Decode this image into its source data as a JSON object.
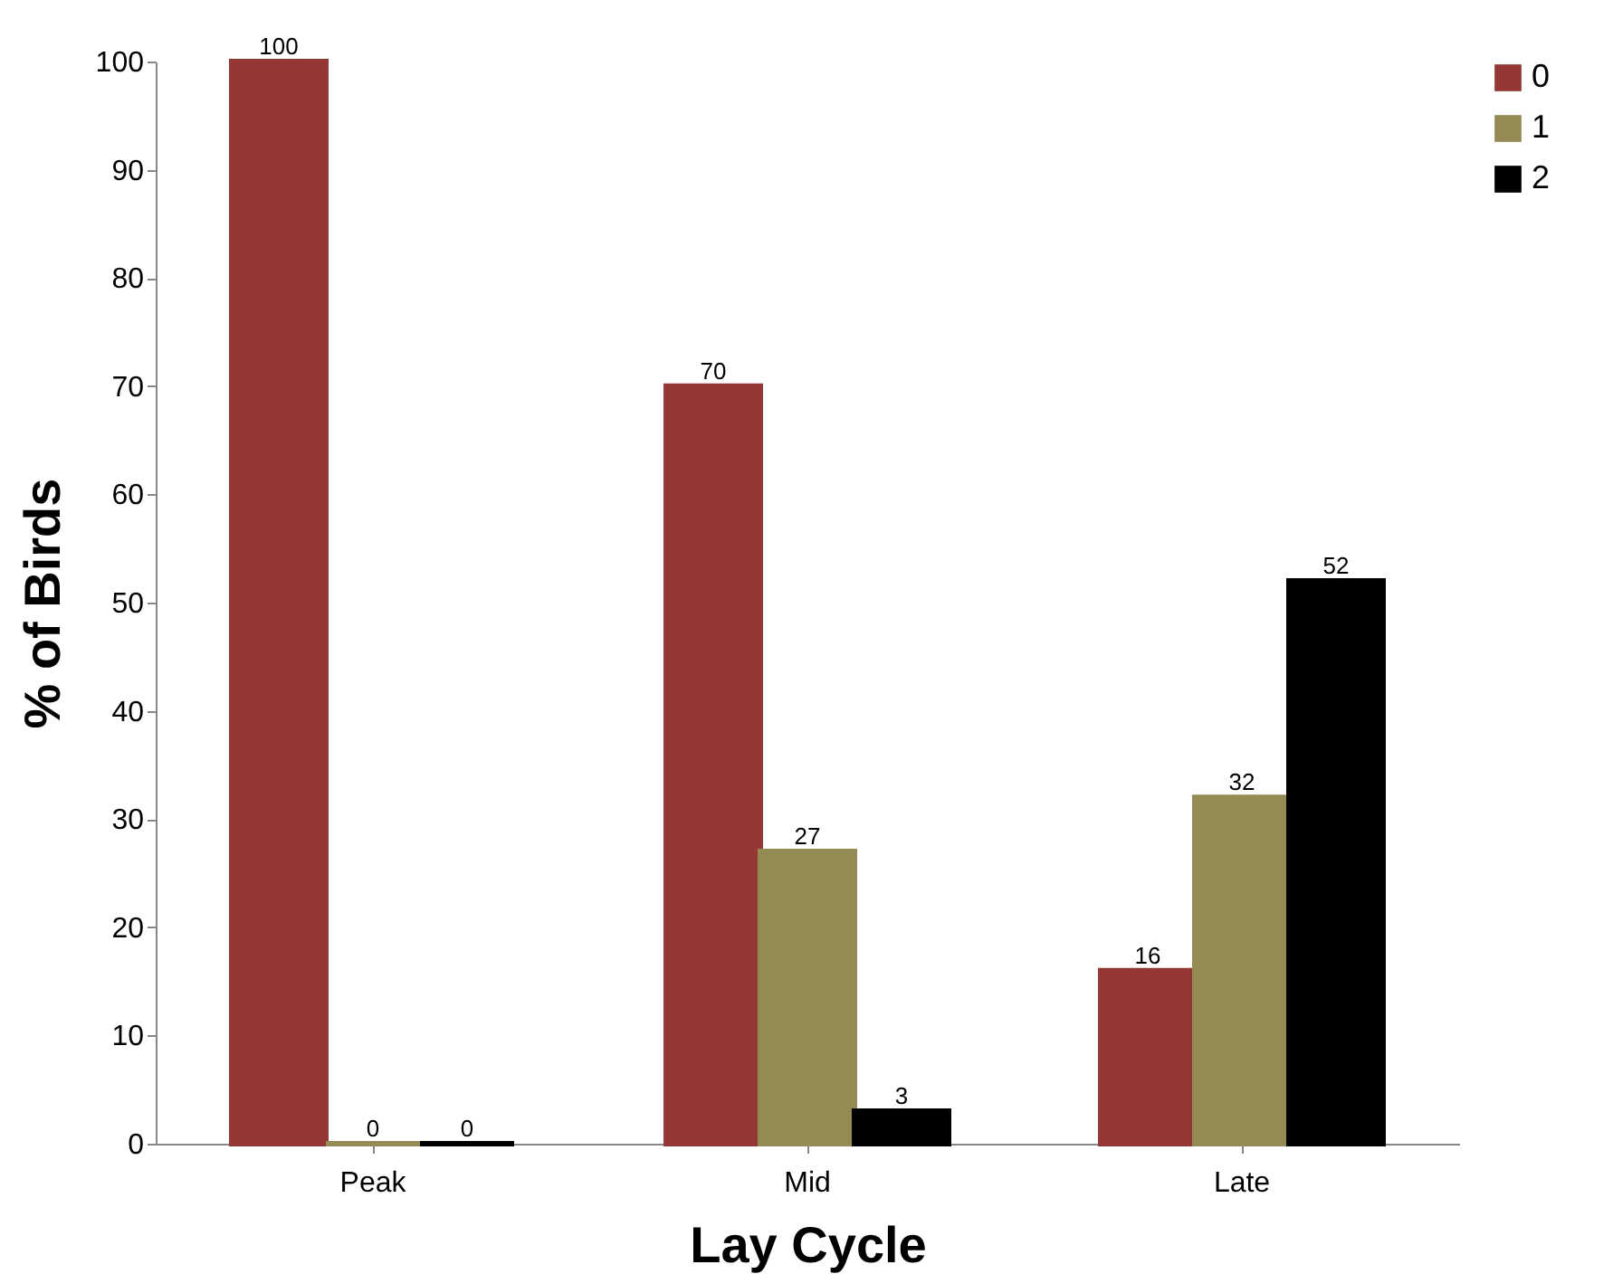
{
  "chart_data": {
    "type": "bar",
    "xlabel": "Lay Cycle",
    "ylabel": "% of Birds",
    "categories": [
      "Peak",
      "Mid",
      "Late"
    ],
    "series": [
      {
        "name": "0",
        "color": "#953735",
        "values": [
          100,
          70,
          16
        ]
      },
      {
        "name": "1",
        "color": "#948a54",
        "values": [
          0,
          27,
          32
        ]
      },
      {
        "name": "2",
        "color": "#000000",
        "values": [
          0,
          3,
          52
        ]
      }
    ],
    "ylim": [
      0,
      100
    ],
    "yticks": [
      0,
      10,
      20,
      30,
      40,
      50,
      60,
      70,
      80,
      90,
      100
    ],
    "grid": false,
    "legend": "right",
    "data_labels": true
  }
}
